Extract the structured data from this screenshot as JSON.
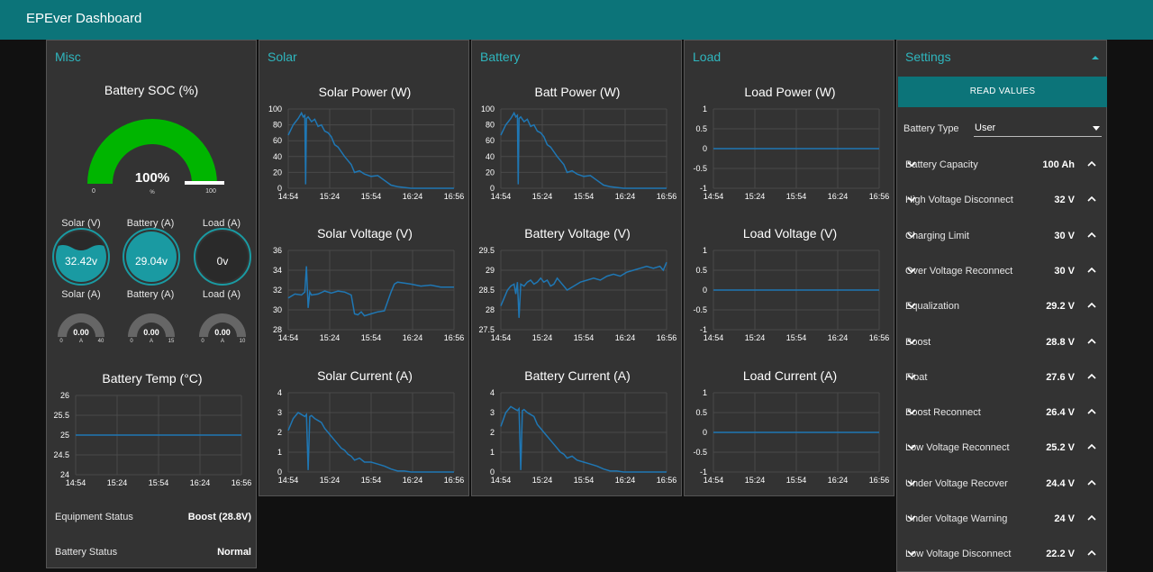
{
  "app": {
    "title": "EPEver Dashboard"
  },
  "colors": {
    "header": "#0c7479",
    "accent": "#2fb6be",
    "line": "#1f77b4",
    "gauge_green": "#00b500"
  },
  "misc": {
    "title": "Misc",
    "soc": {
      "title": "Battery SOC (%)",
      "value": 100,
      "display": "100%",
      "unit": "%",
      "min": "0",
      "max": "100"
    },
    "round_gauges": [
      {
        "label": "Solar (V)",
        "display": "32.42v",
        "level": 0.55
      },
      {
        "label": "Battery (A)",
        "display": "29.04v",
        "level": 1.0
      },
      {
        "label": "Load (A)",
        "display": "0v",
        "level": 0.0
      }
    ],
    "small_gauges": [
      {
        "label": "Solar (A)",
        "display": "0.00",
        "unit": "A",
        "min": "0",
        "max": "40"
      },
      {
        "label": "Battery (A)",
        "display": "0.00",
        "unit": "A",
        "min": "0",
        "max": "15"
      },
      {
        "label": "Load (A)",
        "display": "0.00",
        "unit": "A",
        "min": "0",
        "max": "10"
      }
    ],
    "equipment_status": {
      "label": "Equipment Status",
      "value": "Boost (28.8V)"
    },
    "battery_status": {
      "label": "Battery Status",
      "value": "Normal"
    }
  },
  "groups": {
    "solar": "Solar",
    "battery": "Battery",
    "load": "Load",
    "settings": "Settings"
  },
  "chart_data": [
    {
      "id": "temp",
      "type": "line",
      "title": "Battery Temp (°C)",
      "yticks": [
        "26",
        "25.5",
        "25",
        "24.5",
        "24"
      ],
      "ylim": [
        24,
        26
      ],
      "xticks": [
        "14:54",
        "15:24",
        "15:54",
        "16:24",
        "16:56"
      ],
      "series": [
        {
          "x": [
            0,
            100
          ],
          "y": [
            25,
            25
          ]
        }
      ]
    },
    {
      "id": "solar_power",
      "type": "line",
      "title": "Solar Power (W)",
      "yticks": [
        "100",
        "80",
        "60",
        "40",
        "20",
        "0"
      ],
      "ylim": [
        0,
        100
      ],
      "xticks": [
        "14:54",
        "15:24",
        "15:54",
        "16:24",
        "16:56"
      ],
      "series": [
        {
          "x": [
            0,
            3,
            6,
            8,
            9,
            10,
            10.5,
            11,
            12,
            14,
            16,
            18,
            20,
            22,
            24,
            26,
            28,
            30,
            32,
            34,
            36,
            38,
            40,
            43,
            46,
            50,
            54,
            58,
            62,
            66,
            70,
            74,
            80,
            90,
            100
          ],
          "y": [
            67,
            80,
            88,
            95,
            90,
            92,
            5,
            88,
            90,
            84,
            87,
            78,
            80,
            72,
            70,
            65,
            55,
            52,
            46,
            40,
            35,
            30,
            20,
            22,
            18,
            15,
            16,
            10,
            4,
            2,
            1,
            0,
            0,
            0,
            0
          ]
        }
      ]
    },
    {
      "id": "solar_voltage",
      "type": "line",
      "title": "Solar Voltage (V)",
      "yticks": [
        "36",
        "34",
        "32",
        "30",
        "28"
      ],
      "ylim": [
        28,
        36
      ],
      "xticks": [
        "14:54",
        "15:24",
        "15:54",
        "16:24",
        "16:56"
      ],
      "series": [
        {
          "x": [
            0,
            4,
            8,
            10,
            11,
            12,
            13,
            14,
            18,
            22,
            26,
            30,
            34,
            38,
            40,
            42,
            44,
            46,
            50,
            54,
            58,
            62,
            64,
            66,
            70,
            74,
            80,
            86,
            92,
            100
          ],
          "y": [
            31.2,
            31.6,
            31.5,
            31.8,
            34.4,
            30.2,
            31.8,
            31.5,
            31.6,
            31.9,
            31.7,
            31.9,
            31.8,
            31.5,
            29.6,
            29.5,
            29.8,
            29.4,
            29.6,
            29.8,
            29.9,
            31.8,
            32.6,
            32.8,
            32.7,
            32.6,
            32.4,
            32.5,
            32.3,
            32.3
          ]
        }
      ]
    },
    {
      "id": "solar_current",
      "type": "line",
      "title": "Solar Current (A)",
      "yticks": [
        "4",
        "3",
        "2",
        "1",
        "0"
      ],
      "ylim": [
        0,
        4
      ],
      "xticks": [
        "14:54",
        "15:24",
        "15:54",
        "16:24",
        "16:56"
      ],
      "series": [
        {
          "x": [
            0,
            3,
            6,
            8,
            10,
            11,
            12,
            13,
            14,
            16,
            18,
            20,
            22,
            24,
            26,
            28,
            30,
            32,
            34,
            36,
            38,
            40,
            43,
            46,
            50,
            54,
            58,
            62,
            66,
            70,
            74,
            80,
            90,
            100
          ],
          "y": [
            2.1,
            2.7,
            3.0,
            2.9,
            2.8,
            2.9,
            0.1,
            2.8,
            2.85,
            2.7,
            2.6,
            2.5,
            2.2,
            2.0,
            1.8,
            1.6,
            1.4,
            1.2,
            1.1,
            0.9,
            0.8,
            0.6,
            0.7,
            0.5,
            0.5,
            0.4,
            0.3,
            0.15,
            0.05,
            0.05,
            0,
            0,
            0,
            0
          ]
        }
      ]
    },
    {
      "id": "batt_power",
      "type": "line",
      "title": "Batt Power (W)",
      "yticks": [
        "100",
        "80",
        "60",
        "40",
        "20",
        "0"
      ],
      "ylim": [
        0,
        100
      ],
      "xticks": [
        "14:54",
        "15:24",
        "15:54",
        "16:24",
        "16:56"
      ],
      "series": [
        {
          "x": [
            0,
            3,
            6,
            8,
            9,
            10,
            10.5,
            11,
            12,
            14,
            16,
            18,
            20,
            22,
            24,
            26,
            28,
            30,
            32,
            34,
            36,
            38,
            40,
            43,
            46,
            50,
            54,
            58,
            62,
            66,
            70,
            74,
            80,
            90,
            100
          ],
          "y": [
            67,
            80,
            88,
            95,
            90,
            92,
            5,
            88,
            90,
            84,
            87,
            78,
            80,
            72,
            70,
            65,
            55,
            52,
            46,
            40,
            35,
            30,
            20,
            22,
            18,
            15,
            16,
            10,
            4,
            2,
            1,
            0,
            0,
            0,
            0
          ]
        }
      ]
    },
    {
      "id": "batt_voltage",
      "type": "line",
      "title": "Battery Voltage (V)",
      "yticks": [
        "29.5",
        "29",
        "28.5",
        "28",
        "27.5"
      ],
      "ylim": [
        27.5,
        29.5
      ],
      "xticks": [
        "14:54",
        "15:24",
        "15:54",
        "16:24",
        "16:56"
      ],
      "series": [
        {
          "x": [
            0,
            2,
            4,
            6,
            8,
            9,
            10,
            11,
            12,
            14,
            16,
            18,
            20,
            22,
            24,
            26,
            28,
            30,
            32,
            34,
            36,
            40,
            44,
            48,
            52,
            56,
            60,
            64,
            68,
            72,
            76,
            80,
            84,
            88,
            92,
            96,
            98,
            100
          ],
          "y": [
            28.1,
            28.3,
            28.5,
            28.6,
            28.65,
            28.4,
            28.7,
            27.8,
            28.65,
            28.6,
            28.7,
            28.75,
            28.65,
            28.7,
            28.8,
            28.7,
            28.75,
            28.6,
            28.65,
            28.8,
            28.7,
            28.5,
            28.6,
            28.7,
            28.75,
            28.8,
            28.75,
            28.85,
            28.9,
            28.85,
            28.95,
            29.0,
            29.05,
            29.1,
            29.05,
            29.1,
            29.0,
            29.2
          ]
        }
      ]
    },
    {
      "id": "batt_current",
      "type": "line",
      "title": "Battery Current (A)",
      "yticks": [
        "4",
        "3",
        "2",
        "1",
        "0"
      ],
      "ylim": [
        0,
        4
      ],
      "xticks": [
        "14:54",
        "15:24",
        "15:54",
        "16:24",
        "16:56"
      ],
      "series": [
        {
          "x": [
            0,
            3,
            6,
            8,
            10,
            11,
            12,
            13,
            14,
            16,
            18,
            20,
            22,
            24,
            26,
            28,
            30,
            32,
            34,
            36,
            38,
            40,
            43,
            46,
            50,
            54,
            58,
            62,
            66,
            70,
            74,
            80,
            90,
            100
          ],
          "y": [
            2.3,
            3.0,
            3.3,
            3.2,
            3.1,
            3.2,
            0.1,
            3.1,
            3.15,
            3.0,
            2.9,
            2.8,
            2.4,
            2.2,
            2.0,
            1.8,
            1.6,
            1.4,
            1.2,
            1.0,
            0.9,
            0.7,
            0.8,
            0.6,
            0.5,
            0.4,
            0.3,
            0.15,
            0.05,
            0.05,
            0,
            0,
            0,
            0
          ]
        }
      ]
    },
    {
      "id": "load_power",
      "type": "line",
      "title": "Load Power (W)",
      "yticks": [
        "1",
        "0.5",
        "0",
        "-0.5",
        "-1"
      ],
      "ylim": [
        -1,
        1
      ],
      "xticks": [
        "14:54",
        "15:24",
        "15:54",
        "16:24",
        "16:56"
      ],
      "series": [
        {
          "x": [
            0,
            100
          ],
          "y": [
            0,
            0
          ]
        }
      ]
    },
    {
      "id": "load_voltage",
      "type": "line",
      "title": "Load Voltage (V)",
      "yticks": [
        "1",
        "0.5",
        "0",
        "-0.5",
        "-1"
      ],
      "ylim": [
        -1,
        1
      ],
      "xticks": [
        "14:54",
        "15:24",
        "15:54",
        "16:24",
        "16:56"
      ],
      "series": [
        {
          "x": [
            0,
            100
          ],
          "y": [
            0,
            0
          ]
        }
      ]
    },
    {
      "id": "load_current",
      "type": "line",
      "title": "Load Current (A)",
      "yticks": [
        "1",
        "0.5",
        "0",
        "-0.5",
        "-1"
      ],
      "ylim": [
        -1,
        1
      ],
      "xticks": [
        "14:54",
        "15:24",
        "15:54",
        "16:24",
        "16:56"
      ],
      "series": [
        {
          "x": [
            0,
            100
          ],
          "y": [
            0,
            0
          ]
        }
      ]
    }
  ],
  "settings": {
    "button": "READ VALUES",
    "battery_type": {
      "label": "Battery Type",
      "value": "User"
    },
    "items": [
      {
        "label": "Battery Capacity",
        "value": "100 Ah"
      },
      {
        "label": "High Voltage Disconnect",
        "value": "32 V"
      },
      {
        "label": "Charging Limit",
        "value": "30 V"
      },
      {
        "label": "Over Voltage Reconnect",
        "value": "30 V"
      },
      {
        "label": "Equalization",
        "value": "29.2 V"
      },
      {
        "label": "Boost",
        "value": "28.8 V"
      },
      {
        "label": "Float",
        "value": "27.6 V"
      },
      {
        "label": "Boost Reconnect",
        "value": "26.4 V"
      },
      {
        "label": "Low Voltage Reconnect",
        "value": "25.2 V"
      },
      {
        "label": "Under Voltage Recover",
        "value": "24.4 V"
      },
      {
        "label": "Under Voltage Warning",
        "value": "24 V"
      },
      {
        "label": "Low Voltage Disconnect",
        "value": "22.2 V"
      }
    ]
  }
}
